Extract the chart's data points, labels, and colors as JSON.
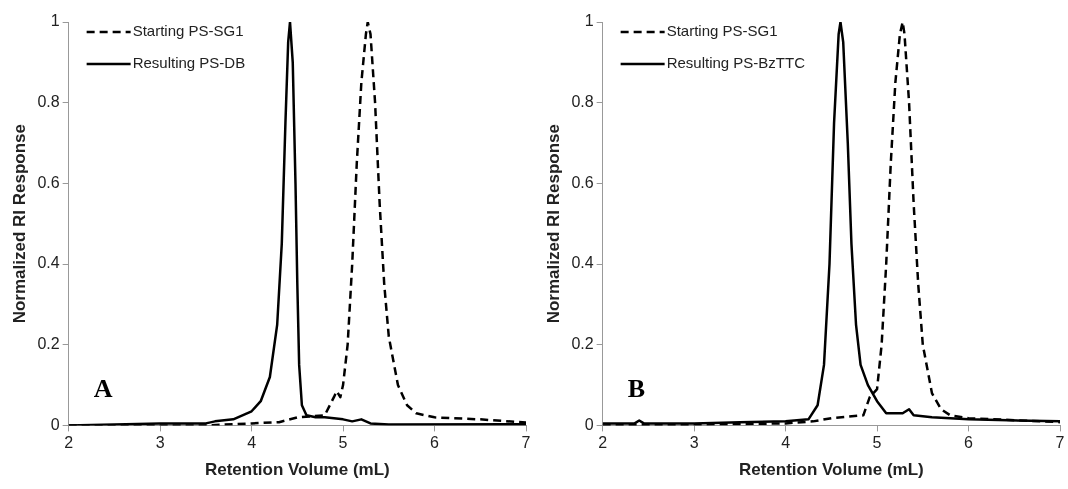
{
  "chart_data": [
    {
      "type": "line",
      "xlabel": "Retention Volume (mL)",
      "ylabel": "Normalized RI Response",
      "xlim": [
        2,
        7
      ],
      "xticks": [
        2,
        3,
        4,
        5,
        6,
        7
      ],
      "ylim": [
        0,
        1
      ],
      "yticks": [
        0,
        0.2,
        0.4,
        0.6,
        0.8,
        1
      ],
      "legend": "top left",
      "annotations": [
        "A"
      ],
      "series": [
        {
          "name": "Starting PS-SG1",
          "color": "#000000",
          "line_style": "dashed",
          "x": [
            2,
            3.5,
            4,
            4.3,
            4.5,
            4.8,
            4.9,
            4.93,
            4.97,
            5.0,
            5.05,
            5.1,
            5.15,
            5.2,
            5.25,
            5.27,
            5.3,
            5.35,
            5.4,
            5.45,
            5.5,
            5.6,
            5.7,
            5.8,
            6.0,
            6.5,
            7
          ],
          "values": [
            0,
            0,
            0.005,
            0.008,
            0.02,
            0.025,
            0.07,
            0.085,
            0.07,
            0.1,
            0.2,
            0.4,
            0.65,
            0.85,
            0.97,
            1,
            0.97,
            0.8,
            0.55,
            0.35,
            0.22,
            0.1,
            0.05,
            0.03,
            0.02,
            0.015,
            0.007
          ]
        },
        {
          "name": "Resulting PS-DB",
          "color": "#000000",
          "line_style": "solid",
          "x": [
            2,
            3,
            3.5,
            3.6,
            3.8,
            4.0,
            4.1,
            4.2,
            4.28,
            4.33,
            4.37,
            4.4,
            4.42,
            4.45,
            4.48,
            4.5,
            4.52,
            4.55,
            4.6,
            4.7,
            4.8,
            5.0,
            5.1,
            5.2,
            5.3,
            5.5,
            7
          ],
          "values": [
            0,
            0.005,
            0.005,
            0.01,
            0.015,
            0.035,
            0.06,
            0.12,
            0.25,
            0.45,
            0.75,
            0.95,
            1,
            0.9,
            0.6,
            0.35,
            0.15,
            0.05,
            0.025,
            0.02,
            0.02,
            0.015,
            0.01,
            0.015,
            0.005,
            0.002,
            0.003
          ]
        }
      ]
    },
    {
      "type": "line",
      "xlabel": "Retention Volume (mL)",
      "ylabel": "Normalized RI Response",
      "xlim": [
        2,
        7
      ],
      "xticks": [
        2,
        3,
        4,
        5,
        6,
        7
      ],
      "ylim": [
        0,
        1
      ],
      "yticks": [
        0,
        0.2,
        0.4,
        0.6,
        0.8,
        1
      ],
      "legend": "top left",
      "annotations": [
        "B"
      ],
      "series": [
        {
          "name": "Starting PS-SG1",
          "color": "#000000",
          "line_style": "dashed",
          "x": [
            2,
            3,
            4,
            4.3,
            4.5,
            4.85,
            4.92,
            4.96,
            5.0,
            5.05,
            5.1,
            5.15,
            5.2,
            5.25,
            5.28,
            5.3,
            5.35,
            5.4,
            5.45,
            5.5,
            5.6,
            5.7,
            5.8,
            6,
            7
          ],
          "values": [
            0,
            0.002,
            0.005,
            0.01,
            0.018,
            0.025,
            0.07,
            0.08,
            0.09,
            0.2,
            0.4,
            0.65,
            0.85,
            0.97,
            1,
            0.97,
            0.8,
            0.55,
            0.35,
            0.2,
            0.08,
            0.04,
            0.025,
            0.018,
            0.008
          ]
        },
        {
          "name": "Resulting PS-BzTTC",
          "color": "#000000",
          "line_style": "solid",
          "x": [
            2,
            2.35,
            2.4,
            2.45,
            3,
            3.5,
            4,
            4.25,
            4.35,
            4.42,
            4.48,
            4.53,
            4.58,
            4.6,
            4.63,
            4.68,
            4.72,
            4.77,
            4.82,
            4.9,
            5.0,
            5.1,
            5.2,
            5.28,
            5.35,
            5.4,
            5.6,
            6,
            7
          ],
          "values": [
            0.005,
            0.005,
            0.012,
            0.005,
            0.005,
            0.008,
            0.01,
            0.015,
            0.05,
            0.15,
            0.4,
            0.75,
            0.97,
            1,
            0.95,
            0.7,
            0.45,
            0.25,
            0.15,
            0.1,
            0.06,
            0.03,
            0.03,
            0.03,
            0.04,
            0.025,
            0.02,
            0.015,
            0.01
          ]
        }
      ]
    }
  ]
}
